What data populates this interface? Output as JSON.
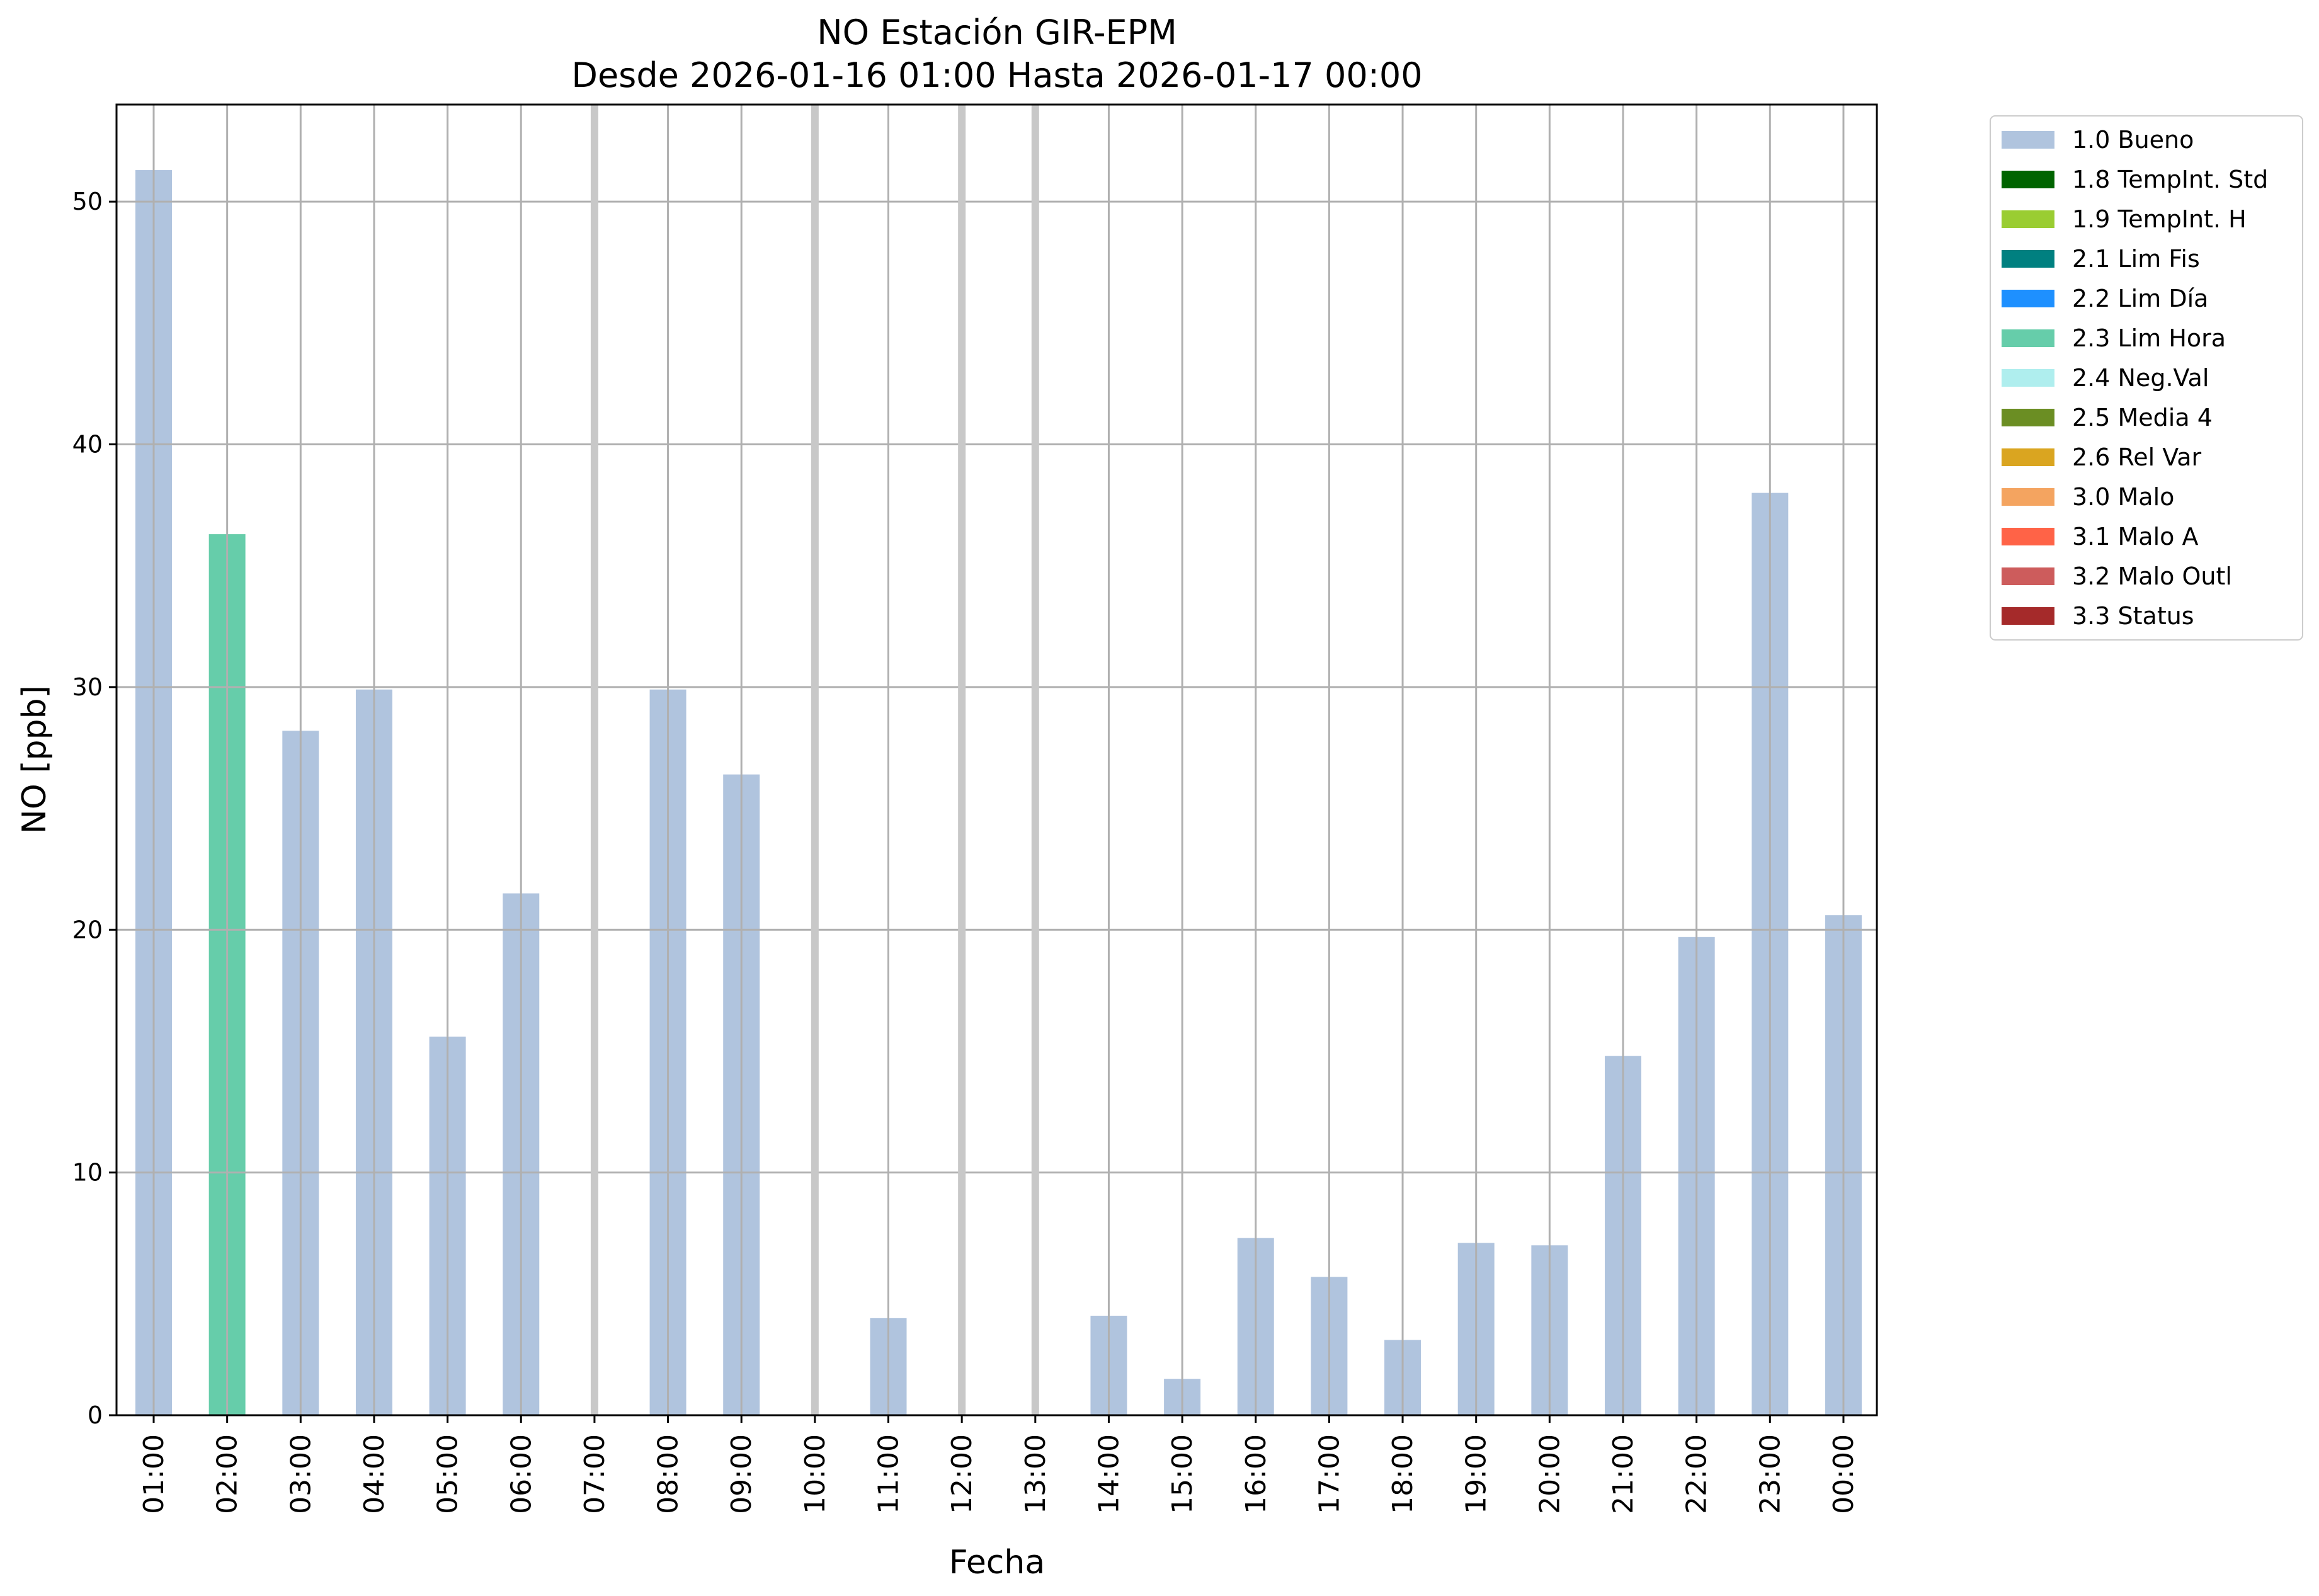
{
  "chart_data": {
    "type": "bar",
    "title_lines": [
      "NO Estación GIR-EPM",
      "Desde 2026-01-16 01:00 Hasta 2026-01-17 00:00"
    ],
    "xlabel": "Fecha",
    "ylabel": "NO [ppb]",
    "ylim": [
      0,
      54
    ],
    "yticks": [
      0,
      10,
      20,
      30,
      40,
      50
    ],
    "grid": true,
    "legend_position": "outside-top-right",
    "categories": [
      "01:00",
      "02:00",
      "03:00",
      "04:00",
      "05:00",
      "06:00",
      "07:00",
      "08:00",
      "09:00",
      "10:00",
      "11:00",
      "12:00",
      "13:00",
      "14:00",
      "15:00",
      "16:00",
      "17:00",
      "18:00",
      "19:00",
      "20:00",
      "21:00",
      "22:00",
      "23:00",
      "00:00"
    ],
    "values": [
      51.3,
      36.3,
      28.2,
      29.9,
      15.6,
      21.5,
      null,
      29.9,
      26.4,
      null,
      4.0,
      null,
      null,
      4.1,
      1.5,
      7.3,
      5.7,
      3.1,
      7.1,
      7.0,
      14.8,
      19.7,
      38.0,
      20.6
    ],
    "flags": [
      "1.0 Bueno",
      "2.3 Lim Hora",
      "1.0 Bueno",
      "1.0 Bueno",
      "1.0 Bueno",
      "1.0 Bueno",
      null,
      "1.0 Bueno",
      "1.0 Bueno",
      null,
      "1.0 Bueno",
      null,
      null,
      "1.0 Bueno",
      "1.0 Bueno",
      "1.0 Bueno",
      "1.0 Bueno",
      "1.0 Bueno",
      "1.0 Bueno",
      "1.0 Bueno",
      "1.0 Bueno",
      "1.0 Bueno",
      "1.0 Bueno",
      "1.0 Bueno"
    ],
    "missing_markers": [
      "07:00",
      "10:00",
      "12:00",
      "13:00"
    ],
    "legend": [
      {
        "label": "1.0 Bueno",
        "color": "#b0c4de"
      },
      {
        "label": "1.8 TempInt. Std",
        "color": "#006400"
      },
      {
        "label": "1.9 TempInt. H",
        "color": "#9acd32"
      },
      {
        "label": "2.1 Lim Fis",
        "color": "#008080"
      },
      {
        "label": "2.2 Lim Día",
        "color": "#1e90ff"
      },
      {
        "label": "2.3 Lim Hora",
        "color": "#66cdaa"
      },
      {
        "label": "2.4 Neg.Val",
        "color": "#afeeee"
      },
      {
        "label": "2.5 Media 4",
        "color": "#6b8e23"
      },
      {
        "label": "2.6 Rel Var",
        "color": "#daa520"
      },
      {
        "label": "3.0 Malo",
        "color": "#f4a460"
      },
      {
        "label": "3.1 Malo A",
        "color": "#ff6347"
      },
      {
        "label": "3.2 Malo Outl",
        "color": "#cd5c5c"
      },
      {
        "label": "3.3 Status",
        "color": "#a52a2a"
      }
    ],
    "colors": {
      "grid": "#b0b0b0",
      "missing_marker": "#c8c8c8",
      "axes": "#000000"
    }
  }
}
